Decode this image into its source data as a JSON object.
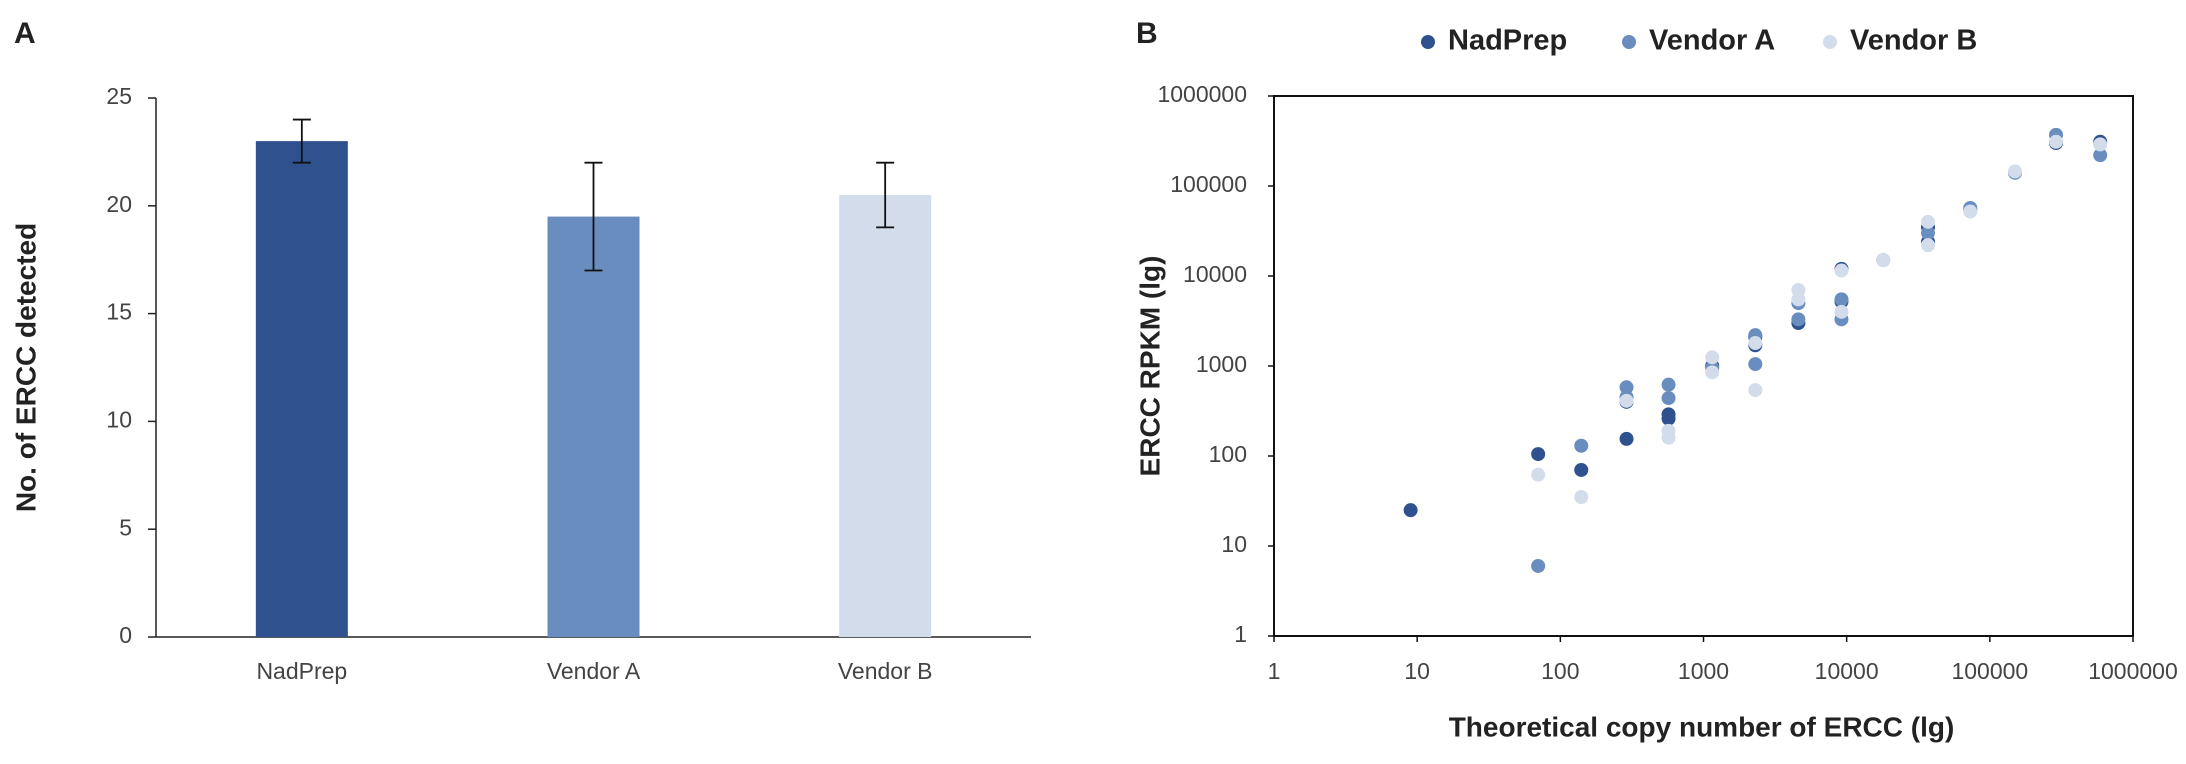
{
  "chart_data": [
    {
      "type": "bar",
      "panel": "A",
      "ylabel": "No. of ERCC detected",
      "categories": [
        "NadPrep",
        "Vendor A",
        "Vendor B"
      ],
      "values": [
        23,
        19.5,
        20.5
      ],
      "errors": [
        1,
        2.5,
        1.5
      ],
      "colors": [
        "#2f528f",
        "#6a8dbf",
        "#d2dcea"
      ],
      "ylim": [
        0,
        25
      ],
      "yticks": [
        0,
        5,
        10,
        15,
        20,
        25
      ]
    },
    {
      "type": "scatter",
      "panel": "B",
      "log": true,
      "xlabel": "Theoretical copy number of ERCC (lg)",
      "ylabel": "ERCC RPKM (lg)",
      "xlim": [
        1,
        1000000
      ],
      "ylim": [
        1,
        1000000
      ],
      "xticks": [
        1,
        10,
        100,
        1000,
        10000,
        100000,
        1000000
      ],
      "yticks": [
        1,
        10,
        100,
        1000,
        10000,
        100000,
        1000000
      ],
      "series": [
        {
          "name": "NadPrep",
          "color": "#2f528f",
          "x": [
            9,
            70,
            140,
            290,
            290,
            570,
            570,
            1150,
            2300,
            2300,
            4600,
            9200,
            9200,
            37000,
            37000,
            73000,
            290000,
            590000
          ],
          "values": [
            25,
            105,
            70,
            155,
            400,
            260,
            290,
            1000,
            1700,
            2100,
            3000,
            12000,
            5200,
            35000,
            24000,
            55000,
            300000,
            310000
          ]
        },
        {
          "name": "Vendor A",
          "color": "#6a8dbf",
          "x": [
            70,
            140,
            290,
            290,
            570,
            570,
            1150,
            2300,
            2300,
            4600,
            4600,
            9200,
            9200,
            18000,
            37000,
            73000,
            150000,
            290000,
            590000
          ],
          "values": [
            6,
            130,
            580,
            450,
            620,
            440,
            950,
            1050,
            2200,
            5000,
            3300,
            3300,
            5500,
            15000,
            30000,
            57000,
            140000,
            370000,
            220000
          ]
        },
        {
          "name": "Vendor B",
          "color": "#d2dcea",
          "x": [
            70,
            140,
            290,
            570,
            570,
            1150,
            1150,
            2300,
            2300,
            4600,
            4600,
            9200,
            9200,
            18000,
            37000,
            37000,
            73000,
            150000,
            290000,
            590000
          ],
          "values": [
            62,
            35,
            410,
            160,
            190,
            1250,
            850,
            540,
            1800,
            7000,
            5500,
            11500,
            4000,
            15000,
            40000,
            22000,
            52000,
            145000,
            310000,
            290000
          ]
        }
      ]
    }
  ]
}
